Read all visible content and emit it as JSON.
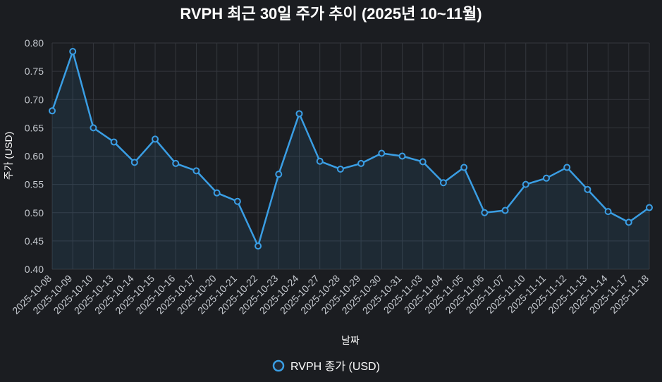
{
  "colors": {
    "background": "#1b1d21",
    "line": "#3a9ee4",
    "area": "rgba(58,158,228,0.10)",
    "grid": "#34373d",
    "point_fill": "#1f2733"
  },
  "chart_data": {
    "type": "line",
    "title": "RVPH 최근 30일 주가 추이 (2025년 10~11월)",
    "xlabel": "날짜",
    "ylabel": "주가 (USD)",
    "ylim": [
      0.4,
      0.8
    ],
    "yticks": [
      "0.40",
      "0.45",
      "0.50",
      "0.55",
      "0.60",
      "0.65",
      "0.70",
      "0.75",
      "0.80"
    ],
    "grid": true,
    "legend_position": "bottom",
    "categories": [
      "2025-10-08",
      "2025-10-09",
      "2025-10-10",
      "2025-10-13",
      "2025-10-14",
      "2025-10-15",
      "2025-10-16",
      "2025-10-17",
      "2025-10-20",
      "2025-10-21",
      "2025-10-22",
      "2025-10-23",
      "2025-10-24",
      "2025-10-27",
      "2025-10-28",
      "2025-10-29",
      "2025-10-30",
      "2025-10-31",
      "2025-11-03",
      "2025-11-04",
      "2025-11-05",
      "2025-11-06",
      "2025-11-07",
      "2025-11-10",
      "2025-11-11",
      "2025-11-12",
      "2025-11-13",
      "2025-11-14",
      "2025-11-17",
      "2025-11-18"
    ],
    "series": [
      {
        "name": "RVPH 종가 (USD)",
        "values": [
          0.68,
          0.785,
          0.65,
          0.625,
          0.589,
          0.63,
          0.587,
          0.574,
          0.535,
          0.52,
          0.441,
          0.568,
          0.675,
          0.591,
          0.577,
          0.587,
          0.605,
          0.6,
          0.59,
          0.553,
          0.58,
          0.5,
          0.504,
          0.55,
          0.561,
          0.58,
          0.541,
          0.502,
          0.483,
          0.509
        ]
      }
    ]
  }
}
